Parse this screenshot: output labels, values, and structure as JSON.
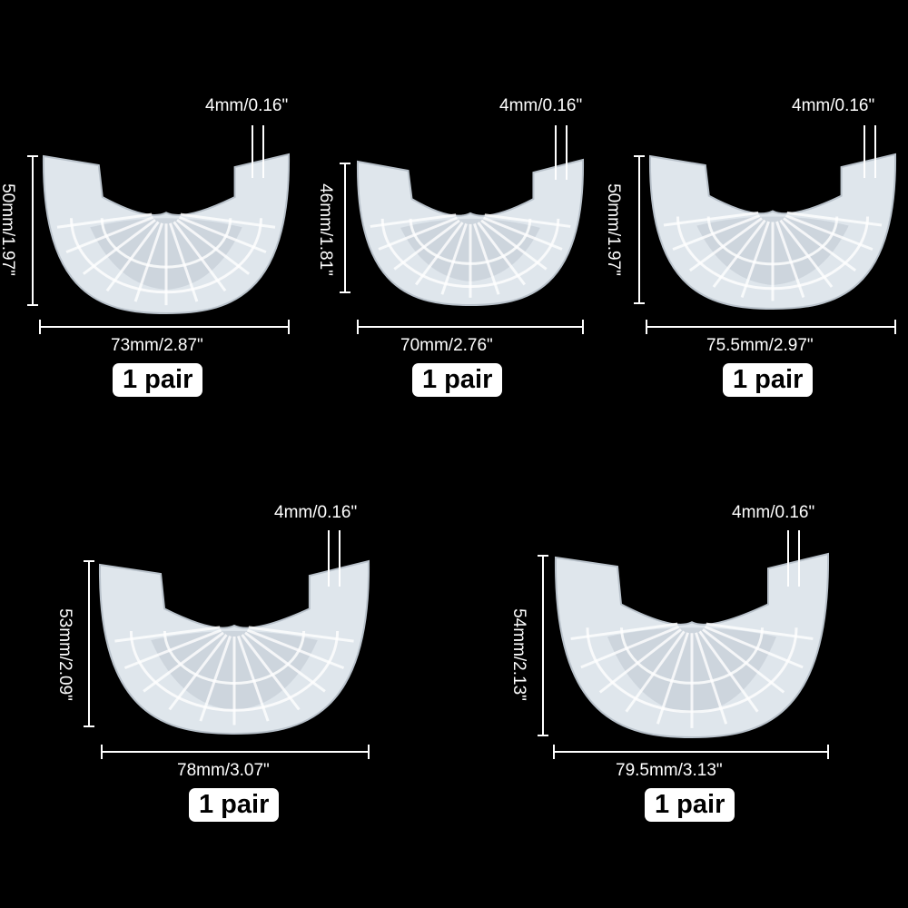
{
  "products": [
    {
      "thickness": "4mm/0.16\"",
      "height": "50mm/1.97\"",
      "width": "73mm/2.87\"",
      "quantity": "1 pair"
    },
    {
      "thickness": "4mm/0.16\"",
      "height": "46mm/1.81\"",
      "width": "70mm/2.76\"",
      "quantity": "1 pair"
    },
    {
      "thickness": "4mm/0.16\"",
      "height": "50mm/1.97\"",
      "width": "75.5mm/2.97\"",
      "quantity": "1 pair"
    },
    {
      "thickness": "4mm/0.16\"",
      "height": "53mm/2.09\"",
      "width": "78mm/3.07\"",
      "quantity": "1 pair"
    },
    {
      "thickness": "4mm/0.16\"",
      "height": "54mm/2.13\"",
      "width": "79.5mm/3.13\"",
      "quantity": "1 pair"
    }
  ],
  "colors": {
    "background": "#000000",
    "pad": "#dfe6ec",
    "pad_shade": "#b9c2cb",
    "line": "#ffffff",
    "badge": "#ffffff"
  }
}
